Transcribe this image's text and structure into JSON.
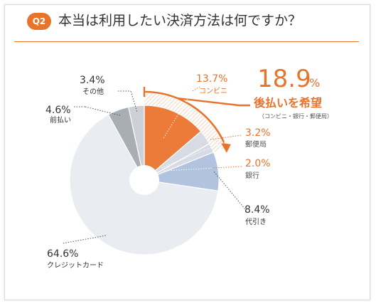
{
  "header": {
    "badge": "Q2",
    "title": "本当は利用したい決済方法は何ですか？"
  },
  "highlight": {
    "value": "18.9",
    "unit": "%",
    "label": "後払いを希望",
    "sublabel": "（コンビニ・銀行・郵便局）"
  },
  "colors": {
    "accent": "#e8732b",
    "conveni": "#ec7b3a",
    "others": "#d7dbe3",
    "card": "#e9ecf1",
    "daibiki": "#b1c3de",
    "maebarai": "#a9aeb4",
    "sonota": "#cdd1d6"
  },
  "chart_data": {
    "type": "pie",
    "title": "本当は利用したい決済方法は何ですか？",
    "unit": "%",
    "slices": [
      {
        "label": "コンビニ",
        "value": 13.7,
        "display": "13.7%",
        "color": "#ec7b3a"
      },
      {
        "label": "郵便局",
        "value": 3.2,
        "display": "3.2%",
        "color": "#d7dbe3"
      },
      {
        "label": "銀行",
        "value": 2.0,
        "display": "2.0%",
        "color": "#d7dbe3"
      },
      {
        "label": "代引き",
        "value": 8.4,
        "display": "8.4%",
        "color": "#b1c3de"
      },
      {
        "label": "クレジットカード",
        "value": 64.6,
        "display": "64.6%",
        "color": "#e9ecf1"
      },
      {
        "label": "前払い",
        "value": 4.6,
        "display": "4.6%",
        "color": "#a9aeb4"
      },
      {
        "label": "その他",
        "value": 3.4,
        "display": "3.4%",
        "color": "#cdd1d6"
      }
    ]
  }
}
